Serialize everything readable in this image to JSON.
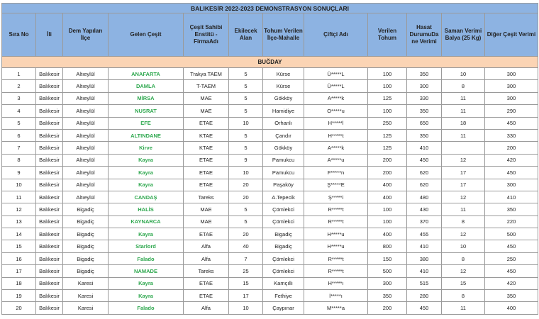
{
  "title": "BALIKESİR 2022-2023 DEMONSTRASYON SONUÇLARI",
  "section": "BUĞDAY",
  "table": {
    "header": [
      "Sıra No",
      "İli",
      "Dem Yapılan İlçe",
      "Gelen Çeşit",
      "Çeşit Sahibi Enstitü - FirmaAdı",
      "Ekilecek Alan",
      "Tohum Verilen İlçe-Mahalle",
      "Çiftçi Adı",
      "Verilen Tohum",
      "Hasat DurumuDa ne Verimi",
      "Saman Verimi Balya (25 Kg)",
      "Diğer Çeşit Verimi"
    ],
    "rows": [
      [
        1,
        "Balıkesir",
        "Altıeylül",
        "ANAFARTA",
        "Trakya TAEM",
        5,
        "Kürse",
        "Ü*****L",
        100,
        350,
        10,
        300
      ],
      [
        2,
        "Balıkesir",
        "Altıeylül",
        "DAMLA",
        "T-TAEM",
        5,
        "Kürse",
        "Ü*****L",
        100,
        300,
        8,
        300
      ],
      [
        3,
        "Balıkesir",
        "Altıeylül",
        "MİRSA",
        "MAE",
        5,
        "Gökköy",
        "A*****k",
        125,
        330,
        11,
        300
      ],
      [
        4,
        "Balıkesir",
        "Altıeylül",
        "NUSRAT",
        "MAE",
        5,
        "Hamidiye",
        "O*****u",
        100,
        350,
        11,
        290
      ],
      [
        5,
        "Balıkesir",
        "Altıeylül",
        "EFE",
        "ETAE",
        10,
        "Orhanlı",
        "H*****l",
        250,
        650,
        18,
        450
      ],
      [
        6,
        "Balıkesir",
        "Altıeylül",
        "ALTINDANE",
        "KTAE",
        5,
        "Çandır",
        "H*****t",
        125,
        350,
        11,
        330
      ],
      [
        7,
        "Balıkesir",
        "Altıeylül",
        "Kirve",
        "KTAE",
        5,
        "Gökköy",
        "A*****k",
        125,
        410,
        null,
        200
      ],
      [
        8,
        "Balıkesir",
        "Altıeylül",
        "Kayra",
        "ETAE",
        9,
        "Pamukcu",
        "A*****u",
        200,
        450,
        12,
        420
      ],
      [
        9,
        "Balıkesir",
        "Altıeylül",
        "Kayra",
        "ETAE",
        10,
        "Pamukcu",
        "F*****n",
        200,
        620,
        17,
        450
      ],
      [
        10,
        "Balıkesir",
        "Altıeylül",
        "Kayra",
        "ETAE",
        20,
        "Paşaköy",
        "Ş*****E",
        400,
        620,
        17,
        300
      ],
      [
        11,
        "Balıkesir",
        "Altıeylül",
        "CANDAŞ",
        "Tareks",
        20,
        "A.Tepecik",
        "Ş*****i",
        400,
        480,
        12,
        410
      ],
      [
        12,
        "Balıkesir",
        "Bigadiç",
        "HALİS",
        "MAE",
        5,
        "Çömlekci",
        "R*****t",
        100,
        430,
        11,
        350
      ],
      [
        13,
        "Balıkesir",
        "Bigadiç",
        "KAYNARCA",
        "MAE",
        5,
        "Çömlekci",
        "R*****t",
        100,
        370,
        8,
        220
      ],
      [
        14,
        "Balıkesir",
        "Bigadiç",
        "Kayra",
        "ETAE",
        20,
        "Bigadiç",
        "H*****u",
        400,
        455,
        12,
        500
      ],
      [
        15,
        "Balıkesir",
        "Bigadiç",
        "Starlord",
        "Alfa",
        40,
        "Bigadiç",
        "H*****u",
        800,
        410,
        10,
        450
      ],
      [
        16,
        "Balıkesir",
        "Bigadiç",
        "Falado",
        "Alfa",
        7,
        "Çömlekci",
        "R*****t",
        150,
        380,
        8,
        250
      ],
      [
        17,
        "Balıkesir",
        "Bigadiç",
        "NAMADE",
        "Tareks",
        25,
        "Çömlekci",
        "R*****t",
        500,
        410,
        12,
        450
      ],
      [
        18,
        "Balıkesir",
        "Karesi",
        "Kayra",
        "ETAE",
        15,
        "Kamçıllı",
        "H*****ı",
        300,
        515,
        15,
        420
      ],
      [
        19,
        "Balıkesir",
        "Karesi",
        "Kayra",
        "ETAE",
        17,
        "Fethiye",
        "İ*****ı",
        350,
        280,
        8,
        350
      ],
      [
        20,
        "Balıkesir",
        "Karesi",
        "Falado",
        "Alfa",
        10,
        "Çaypınar",
        "M*****a",
        200,
        450,
        11,
        400
      ]
    ]
  }
}
